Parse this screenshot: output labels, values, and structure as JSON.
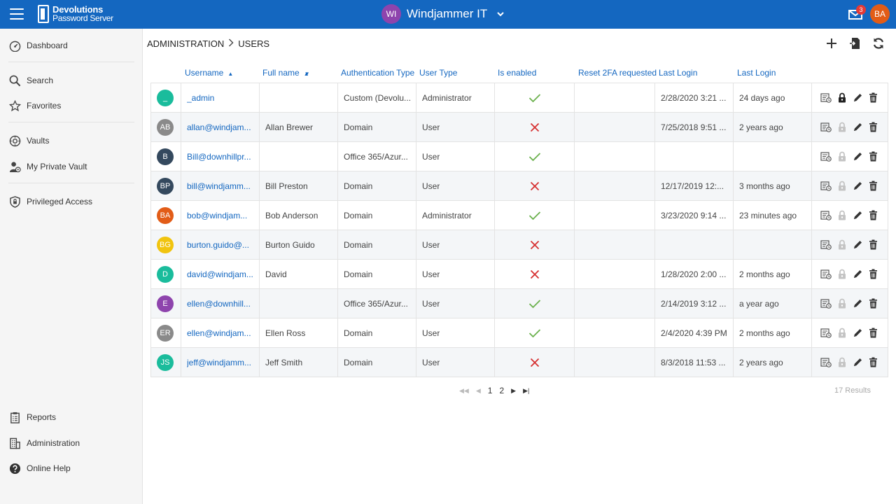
{
  "app": {
    "logo_line1": "Devolutions",
    "logo_line2": "Password Server",
    "vault_initials": "WI",
    "vault_name": "Windjammer IT",
    "vault_color": "#8e44ad",
    "mail_count": "3",
    "user_initials": "BA",
    "user_color": "#e25c17",
    "brand_color": "#1467c0"
  },
  "sidebar": {
    "items": [
      {
        "label": "Dashboard",
        "icon": "dashboard-icon"
      },
      {
        "label": "Search",
        "icon": "search-icon"
      },
      {
        "label": "Favorites",
        "icon": "star-icon"
      },
      {
        "label": "Vaults",
        "icon": "vault-icon"
      },
      {
        "label": "My Private Vault",
        "icon": "private-vault-icon"
      },
      {
        "label": "Privileged Access",
        "icon": "shield-icon"
      },
      {
        "label": "Reports",
        "icon": "clipboard-icon"
      },
      {
        "label": "Administration",
        "icon": "building-icon"
      },
      {
        "label": "Online Help",
        "icon": "help-icon"
      }
    ]
  },
  "breadcrumb": {
    "root": "ADMINISTRATION",
    "current": "USERS"
  },
  "toolbar": {
    "add": "add-icon",
    "import": "import-icon",
    "refresh": "refresh-icon"
  },
  "table": {
    "headers": {
      "username": "Username",
      "fullname": "Full name",
      "auth": "Authentication Type",
      "type": "User Type",
      "enabled": "Is enabled",
      "reset": "Reset 2FA requested",
      "last1": "Last Login",
      "last2": "Last Login"
    },
    "rows": [
      {
        "initials": "_",
        "color": "#1abc9c",
        "username": "_admin",
        "fullname": "",
        "auth": "Custom (Devolu...",
        "type": "Administrator",
        "enabled": true,
        "last": "2/28/2020 3:21 ...",
        "rel": "24 days ago",
        "locked": true
      },
      {
        "initials": "AB",
        "color": "#8a8a8a",
        "username": "allan@windjam...",
        "fullname": "Allan Brewer",
        "auth": "Domain",
        "type": "User",
        "enabled": false,
        "last": "7/25/2018 9:51 ...",
        "rel": "2 years ago",
        "locked": false
      },
      {
        "initials": "B",
        "color": "#34495e",
        "username": "Bill@downhillpr...",
        "fullname": "",
        "auth": "Office 365/Azur...",
        "type": "User",
        "enabled": true,
        "last": "",
        "rel": "",
        "locked": false
      },
      {
        "initials": "BP",
        "color": "#34495e",
        "username": "bill@windjamm...",
        "fullname": "Bill Preston",
        "auth": "Domain",
        "type": "User",
        "enabled": false,
        "last": "12/17/2019 12:...",
        "rel": "3 months ago",
        "locked": false
      },
      {
        "initials": "BA",
        "color": "#e25c17",
        "username": "bob@windjam...",
        "fullname": "Bob Anderson",
        "auth": "Domain",
        "type": "Administrator",
        "enabled": true,
        "last": "3/23/2020 9:14 ...",
        "rel": "23 minutes ago",
        "locked": false
      },
      {
        "initials": "BG",
        "color": "#f1c40f",
        "username": "burton.guido@...",
        "fullname": "Burton Guido",
        "auth": "Domain",
        "type": "User",
        "enabled": false,
        "last": "",
        "rel": "",
        "locked": false
      },
      {
        "initials": "D",
        "color": "#1abc9c",
        "username": "david@windjam...",
        "fullname": "David",
        "auth": "Domain",
        "type": "User",
        "enabled": false,
        "last": "1/28/2020 2:00 ...",
        "rel": "2 months ago",
        "locked": false
      },
      {
        "initials": "E",
        "color": "#8e44ad",
        "username": "ellen@downhill...",
        "fullname": "",
        "auth": "Office 365/Azur...",
        "type": "User",
        "enabled": true,
        "last": "2/14/2019 3:12 ...",
        "rel": "a year ago",
        "locked": false
      },
      {
        "initials": "ER",
        "color": "#8a8a8a",
        "username": "ellen@windjam...",
        "fullname": "Ellen Ross",
        "auth": "Domain",
        "type": "User",
        "enabled": true,
        "last": "2/4/2020 4:39 PM",
        "rel": "2 months ago",
        "locked": false
      },
      {
        "initials": "JS",
        "color": "#1abc9c",
        "username": "jeff@windjamm...",
        "fullname": "Jeff Smith",
        "auth": "Domain",
        "type": "User",
        "enabled": false,
        "last": "8/3/2018 11:53 ...",
        "rel": "2 years ago",
        "locked": false
      }
    ]
  },
  "pagination": {
    "pages": [
      "1",
      "2"
    ],
    "results": "17 Results"
  },
  "status_colors": {
    "check": "#6ab04c",
    "cross": "#d63031"
  }
}
